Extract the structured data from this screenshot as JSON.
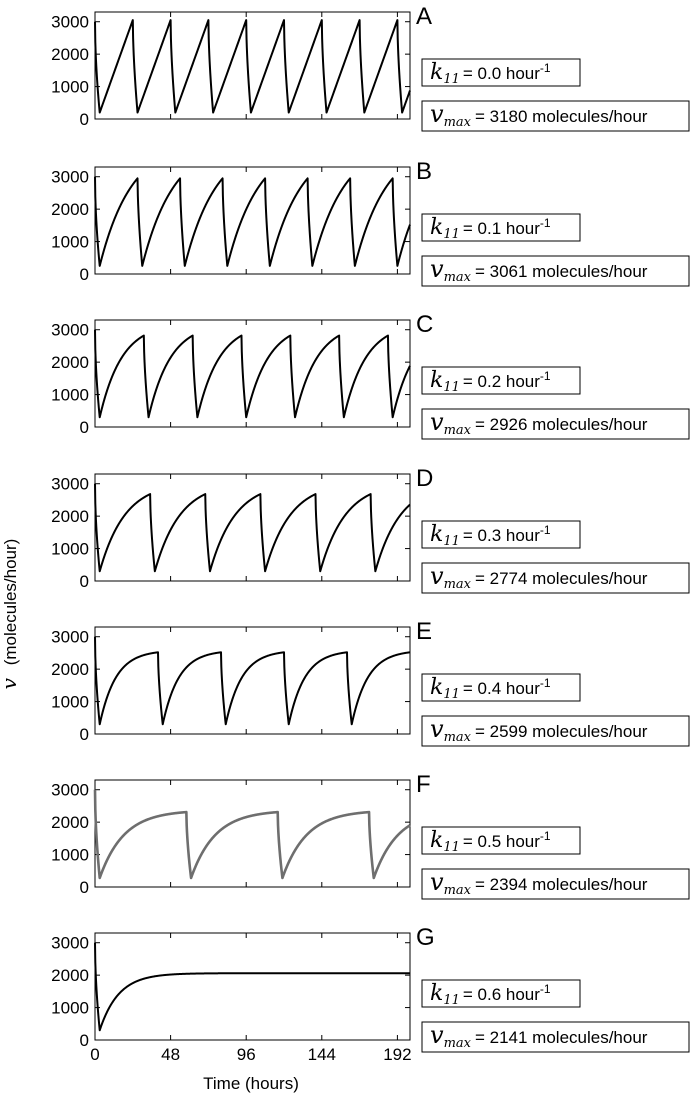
{
  "figure": {
    "ylabel_symbol": "v",
    "ylabel_unit": "(molecules/hour)",
    "xlabel": "Time (hours)",
    "x_ticks": [
      "0",
      "48",
      "96",
      "144",
      "192"
    ],
    "y_ticks": [
      "0",
      "1000",
      "2000",
      "3000"
    ],
    "k_symbol": "k",
    "k_sub": "11",
    "v_symbol": "v",
    "v_sub": "max"
  },
  "chart_data": [
    {
      "type": "line",
      "label": "A",
      "k11": 0.0,
      "k11_text": "0.0",
      "k11_unit": "hour",
      "k11_exp": "-1",
      "vmax": 3180,
      "vmax_text": "3180",
      "vmax_unit": "molecules/hour",
      "xlim": [
        0,
        200
      ],
      "ylim": [
        0,
        3300
      ],
      "start": 3000,
      "min": 200,
      "peak": 3050,
      "period": 24,
      "first_trough": 3,
      "shape": "linear",
      "color": "#000000",
      "x": [
        0,
        1.5,
        3,
        27,
        28.5,
        51,
        52.5,
        75,
        76.5,
        99,
        100.5,
        123,
        124.5,
        147,
        148.5,
        171,
        172.5,
        195,
        196.5,
        200
      ],
      "y": [
        3000,
        500,
        200,
        3050,
        200,
        3050,
        200,
        3050,
        200,
        3050,
        200,
        3050,
        200,
        3050,
        200,
        3050,
        200,
        3050,
        200,
        1450
      ]
    },
    {
      "type": "line",
      "label": "B",
      "k11": 0.1,
      "k11_text": "0.1",
      "k11_unit": "hour",
      "k11_exp": "-1",
      "vmax": 3061,
      "vmax_text": "3061",
      "vmax_unit": "molecules/hour",
      "xlim": [
        0,
        200
      ],
      "ylim": [
        0,
        3300
      ],
      "start": 3000,
      "min": 250,
      "peak": 2950,
      "period": 27,
      "first_trough": 3,
      "shape": "slight",
      "color": "#000000",
      "x": [
        0,
        3,
        30,
        33,
        57,
        60,
        84,
        87,
        111,
        114,
        138,
        141,
        165,
        168,
        192,
        195,
        200
      ],
      "y": [
        3000,
        250,
        2950,
        250,
        2950,
        250,
        2950,
        250,
        2950,
        250,
        2950,
        250,
        2950,
        250,
        2950,
        250,
        2150
      ]
    },
    {
      "type": "line",
      "label": "C",
      "k11": 0.2,
      "k11_text": "0.2",
      "k11_unit": "hour",
      "k11_exp": "-1",
      "vmax": 2926,
      "vmax_text": "2926",
      "vmax_unit": "molecules/hour",
      "xlim": [
        0,
        200
      ],
      "ylim": [
        0,
        3300
      ],
      "start": 3000,
      "min": 300,
      "peak": 2820,
      "period": 31,
      "first_trough": 3,
      "shape": "concave",
      "color": "#000000",
      "x": [
        0,
        3,
        31,
        34,
        62,
        65,
        93,
        96,
        124,
        127,
        155,
        158,
        186,
        189,
        200
      ],
      "y": [
        3000,
        300,
        2820,
        300,
        2820,
        300,
        2820,
        300,
        2820,
        300,
        2820,
        300,
        2820,
        300,
        2550
      ]
    },
    {
      "type": "line",
      "label": "D",
      "k11": 0.3,
      "k11_text": "0.3",
      "k11_unit": "hour",
      "k11_exp": "-1",
      "vmax": 2774,
      "vmax_text": "2774",
      "vmax_unit": "molecules/hour",
      "xlim": [
        0,
        200
      ],
      "ylim": [
        0,
        3300
      ],
      "start": 3000,
      "min": 300,
      "peak": 2680,
      "period": 35,
      "first_trough": 3,
      "shape": "concave",
      "color": "#000000",
      "x": [
        0,
        3,
        35,
        38,
        70,
        73,
        105,
        108,
        140,
        143,
        175,
        178,
        200
      ],
      "y": [
        3000,
        300,
        2680,
        300,
        2680,
        300,
        2680,
        300,
        2680,
        300,
        2680,
        300,
        2600
      ]
    },
    {
      "type": "line",
      "label": "E",
      "k11": 0.4,
      "k11_text": "0.4",
      "k11_unit": "hour",
      "k11_exp": "-1",
      "vmax": 2599,
      "vmax_text": "2599",
      "vmax_unit": "molecules/hour",
      "xlim": [
        0,
        200
      ],
      "ylim": [
        0,
        3300
      ],
      "start": 3000,
      "min": 300,
      "peak": 2520,
      "period": 40,
      "first_trough": 3,
      "shape": "saturating",
      "color": "#000000",
      "x": [
        0,
        3,
        40,
        43,
        80,
        83,
        120,
        123,
        160,
        163,
        200
      ],
      "y": [
        3000,
        300,
        2520,
        300,
        2520,
        300,
        2520,
        300,
        2520,
        300,
        2430
      ]
    },
    {
      "type": "line",
      "label": "F",
      "k11": 0.5,
      "k11_text": "0.5",
      "k11_unit": "hour",
      "k11_exp": "-1",
      "vmax": 2394,
      "vmax_text": "2394",
      "vmax_unit": "molecules/hour",
      "xlim": [
        0,
        200
      ],
      "ylim": [
        0,
        3300
      ],
      "start": 3000,
      "min": 280,
      "peak": 2310,
      "period": 58,
      "first_trough": 3,
      "shape": "saturating",
      "color": "#6e6e6e",
      "x": [
        0,
        3,
        58,
        61,
        116,
        119,
        174,
        177,
        200
      ],
      "y": [
        3000,
        280,
        2310,
        280,
        2310,
        280,
        2310,
        280,
        1830
      ]
    },
    {
      "type": "line",
      "label": "G",
      "k11": 0.6,
      "k11_text": "0.6",
      "k11_unit": "hour",
      "k11_exp": "-1",
      "vmax": 2141,
      "vmax_text": "2141",
      "vmax_unit": "molecules/hour",
      "xlim": [
        0,
        200
      ],
      "ylim": [
        0,
        3300
      ],
      "start": 3000,
      "min": 300,
      "peak": 2060,
      "period": 0,
      "first_trough": 3,
      "shape": "steady",
      "color": "#000000",
      "x": [
        0,
        3,
        24,
        48,
        72,
        96,
        144,
        200
      ],
      "y": [
        3000,
        300,
        1650,
        1990,
        2055,
        2060,
        2060,
        2060
      ]
    }
  ]
}
